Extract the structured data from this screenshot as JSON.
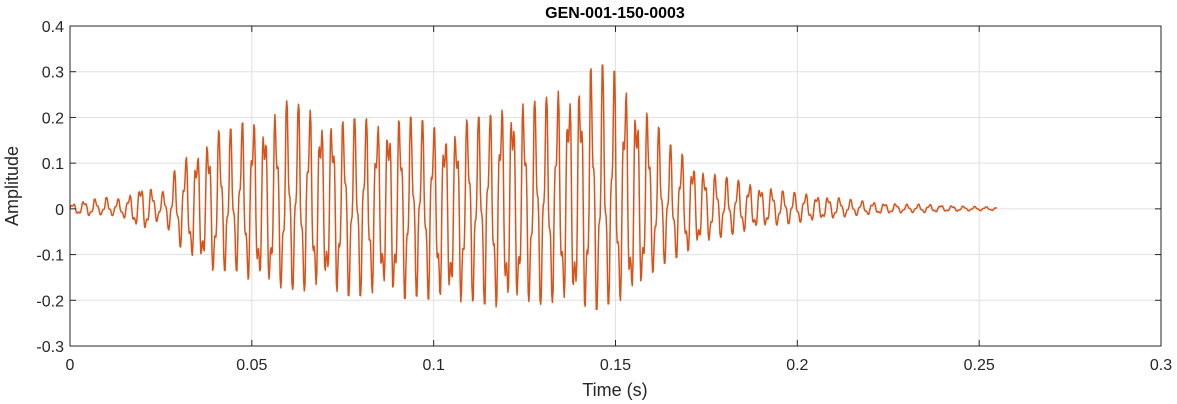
{
  "chart_data": {
    "type": "line",
    "title": "GEN-001-150-0003",
    "xlabel": "Time (s)",
    "ylabel": "Amplitude",
    "xlim": [
      0,
      0.3
    ],
    "ylim": [
      -0.3,
      0.4
    ],
    "xticks": [
      0,
      0.05,
      0.1,
      0.15,
      0.2,
      0.25,
      0.3
    ],
    "xtick_labels": [
      "0",
      "0.05",
      "0.1",
      "0.15",
      "0.2",
      "0.25",
      "0.3"
    ],
    "yticks": [
      -0.3,
      -0.2,
      -0.1,
      0,
      0.1,
      0.2,
      0.3,
      0.4
    ],
    "ytick_labels": [
      "-0.3",
      "-0.2",
      "-0.1",
      "0",
      "0.1",
      "0.2",
      "0.3",
      "0.4"
    ],
    "grid": true,
    "line_color": "#d95319",
    "series": [
      {
        "x": [
          0,
          0.005,
          0.01,
          0.015,
          0.02,
          0.025,
          0.03,
          0.035,
          0.04,
          0.045,
          0.05,
          0.055,
          0.06,
          0.065,
          0.07,
          0.075,
          0.08,
          0.085,
          0.09,
          0.095,
          0.1,
          0.105,
          0.11,
          0.115,
          0.12,
          0.125,
          0.13,
          0.135,
          0.14,
          0.145,
          0.15,
          0.155,
          0.16,
          0.165,
          0.17,
          0.175,
          0.18,
          0.185,
          0.19,
          0.195,
          0.2,
          0.205,
          0.21,
          0.215,
          0.22,
          0.225,
          0.23,
          0.235,
          0.24,
          0.245,
          0.25,
          0.255
        ],
        "y_max": [
          0.01,
          0.02,
          0.025,
          0.02,
          0.055,
          0.03,
          0.1,
          0.13,
          0.17,
          0.175,
          0.2,
          0.195,
          0.24,
          0.22,
          0.2,
          0.19,
          0.2,
          0.19,
          0.2,
          0.2,
          0.18,
          0.17,
          0.2,
          0.2,
          0.24,
          0.23,
          0.24,
          0.26,
          0.28,
          0.32,
          0.3,
          0.25,
          0.2,
          0.14,
          0.11,
          0.08,
          0.07,
          0.06,
          0.05,
          0.04,
          0.035,
          0.03,
          0.025,
          0.02,
          0.015,
          0.012,
          0.01,
          0.01,
          0.008,
          0.006,
          0.005,
          0.004
        ],
        "y_min": [
          -0.01,
          -0.015,
          -0.012,
          -0.02,
          -0.05,
          -0.02,
          -0.08,
          -0.12,
          -0.14,
          -0.13,
          -0.16,
          -0.17,
          -0.175,
          -0.18,
          -0.17,
          -0.19,
          -0.19,
          -0.18,
          -0.2,
          -0.19,
          -0.2,
          -0.21,
          -0.2,
          -0.21,
          -0.22,
          -0.2,
          -0.21,
          -0.2,
          -0.22,
          -0.22,
          -0.2,
          -0.2,
          -0.14,
          -0.11,
          -0.1,
          -0.07,
          -0.06,
          -0.05,
          -0.04,
          -0.035,
          -0.03,
          -0.025,
          -0.02,
          -0.015,
          -0.012,
          -0.01,
          -0.008,
          -0.008,
          -0.006,
          -0.005,
          -0.004,
          -0.003
        ]
      }
    ]
  }
}
